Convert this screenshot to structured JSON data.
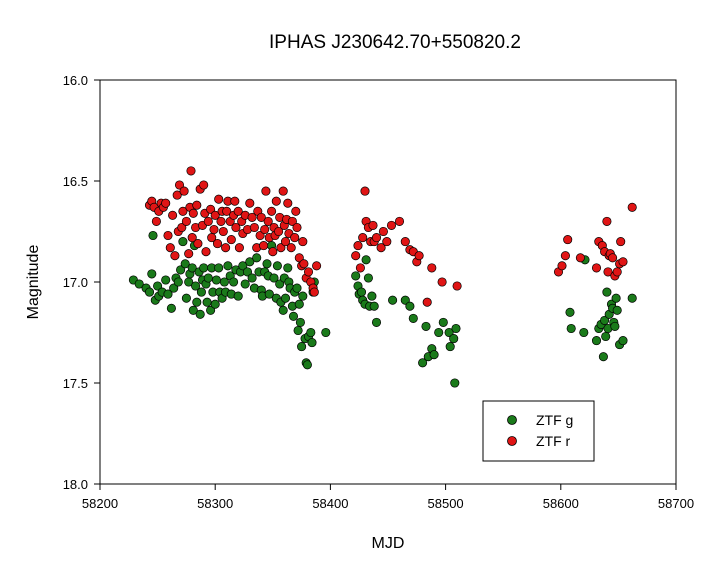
{
  "chart_data": {
    "type": "scatter",
    "title": "IPHAS J230642.70+550820.2",
    "xlabel": "MJD",
    "ylabel": "Magnitude",
    "xlim": [
      58200,
      58700
    ],
    "ylim": [
      16.0,
      18.0
    ],
    "y_inverted": true,
    "grid": false,
    "legend_position": "bottom-right",
    "x_ticks": [
      "58200",
      "58300",
      "58400",
      "58500",
      "58600",
      "58700"
    ],
    "y_ticks": [
      "16.0",
      "16.5",
      "17.0",
      "17.5",
      "18.0"
    ],
    "series": [
      {
        "name": "ZTF g",
        "color": "#1a7a1a",
        "points": [
          [
            58229,
            16.99
          ],
          [
            58234,
            17.01
          ],
          [
            58240,
            17.03
          ],
          [
            58243,
            17.05
          ],
          [
            58245,
            16.96
          ],
          [
            58246,
            16.77
          ],
          [
            58248,
            17.09
          ],
          [
            58250,
            17.02
          ],
          [
            58251,
            17.07
          ],
          [
            58254,
            17.05
          ],
          [
            58257,
            16.99
          ],
          [
            58259,
            17.06
          ],
          [
            58262,
            17.13
          ],
          [
            58264,
            17.03
          ],
          [
            58266,
            16.98
          ],
          [
            58268,
            17.0
          ],
          [
            58270,
            16.94
          ],
          [
            58272,
            16.8
          ],
          [
            58274,
            16.91
          ],
          [
            58275,
            17.08
          ],
          [
            58277,
            17.0
          ],
          [
            58278,
            16.96
          ],
          [
            58280,
            16.93
          ],
          [
            58281,
            17.14
          ],
          [
            58282,
            16.82
          ],
          [
            58283,
            17.02
          ],
          [
            58284,
            17.1
          ],
          [
            58286,
            16.95
          ],
          [
            58287,
            17.16
          ],
          [
            58288,
            17.05
          ],
          [
            58289,
            16.99
          ],
          [
            58290,
            16.93
          ],
          [
            58292,
            17.01
          ],
          [
            58293,
            17.1
          ],
          [
            58294,
            16.98
          ],
          [
            58296,
            17.14
          ],
          [
            58297,
            16.93
          ],
          [
            58298,
            17.05
          ],
          [
            58300,
            17.11
          ],
          [
            58301,
            16.99
          ],
          [
            58303,
            16.93
          ],
          [
            58304,
            17.05
          ],
          [
            58306,
            17.08
          ],
          [
            58308,
            17.0
          ],
          [
            58309,
            17.05
          ],
          [
            58311,
            16.92
          ],
          [
            58313,
            16.97
          ],
          [
            58314,
            17.06
          ],
          [
            58316,
            17.0
          ],
          [
            58318,
            16.94
          ],
          [
            58320,
            17.07
          ],
          [
            58322,
            16.95
          ],
          [
            58324,
            16.92
          ],
          [
            58326,
            17.01
          ],
          [
            58328,
            16.95
          ],
          [
            58330,
            16.9
          ],
          [
            58332,
            16.98
          ],
          [
            58334,
            17.03
          ],
          [
            58336,
            16.88
          ],
          [
            58338,
            16.95
          ],
          [
            58340,
            17.04
          ],
          [
            58341,
            17.07
          ],
          [
            58343,
            16.95
          ],
          [
            58345,
            16.91
          ],
          [
            58346,
            16.97
          ],
          [
            58347,
            17.06
          ],
          [
            58349,
            16.82
          ],
          [
            58351,
            16.98
          ],
          [
            58353,
            17.08
          ],
          [
            58354,
            16.92
          ],
          [
            58356,
            17.01
          ],
          [
            58357,
            17.1
          ],
          [
            58359,
            17.14
          ],
          [
            58360,
            16.98
          ],
          [
            58361,
            17.08
          ],
          [
            58363,
            16.93
          ],
          [
            58364,
            17.0
          ],
          [
            58365,
            17.03
          ],
          [
            58367,
            17.12
          ],
          [
            58368,
            17.17
          ],
          [
            58369,
            17.05
          ],
          [
            58371,
            17.03
          ],
          [
            58372,
            17.24
          ],
          [
            58373,
            17.11
          ],
          [
            58374,
            17.2
          ],
          [
            58375,
            17.32
          ],
          [
            58376,
            17.07
          ],
          [
            58378,
            17.28
          ],
          [
            58379,
            17.4
          ],
          [
            58380,
            17.41
          ],
          [
            58381,
            17.27
          ],
          [
            58383,
            17.25
          ],
          [
            58384,
            17.3
          ],
          [
            58385,
            17.05
          ],
          [
            58386,
            17.0
          ],
          [
            58396,
            17.25
          ],
          [
            58422,
            16.97
          ],
          [
            58424,
            17.02
          ],
          [
            58425,
            17.06
          ],
          [
            58427,
            17.05
          ],
          [
            58428,
            17.09
          ],
          [
            58430,
            17.11
          ],
          [
            58431,
            16.89
          ],
          [
            58433,
            16.98
          ],
          [
            58434,
            17.12
          ],
          [
            58436,
            17.07
          ],
          [
            58438,
            17.12
          ],
          [
            58440,
            17.2
          ],
          [
            58454,
            17.09
          ],
          [
            58465,
            17.09
          ],
          [
            58469,
            17.12
          ],
          [
            58472,
            17.18
          ],
          [
            58480,
            17.4
          ],
          [
            58483,
            17.22
          ],
          [
            58485,
            17.37
          ],
          [
            58488,
            17.33
          ],
          [
            58490,
            17.36
          ],
          [
            58494,
            17.25
          ],
          [
            58498,
            17.2
          ],
          [
            58503,
            17.25
          ],
          [
            58504,
            17.32
          ],
          [
            58507,
            17.28
          ],
          [
            58508,
            17.5
          ],
          [
            58509,
            17.23
          ],
          [
            58608,
            17.15
          ],
          [
            58609,
            17.23
          ],
          [
            58620,
            17.25
          ],
          [
            58621,
            16.89
          ],
          [
            58631,
            17.29
          ],
          [
            58633,
            17.23
          ],
          [
            58635,
            17.21
          ],
          [
            58637,
            17.37
          ],
          [
            58638,
            17.19
          ],
          [
            58639,
            17.27
          ],
          [
            58640,
            17.05
          ],
          [
            58641,
            17.23
          ],
          [
            58642,
            17.16
          ],
          [
            58644,
            17.11
          ],
          [
            58645,
            17.13
          ],
          [
            58646,
            17.2
          ],
          [
            58647,
            17.22
          ],
          [
            58648,
            17.08
          ],
          [
            58649,
            17.14
          ],
          [
            58651,
            17.31
          ],
          [
            58654,
            17.29
          ],
          [
            58662,
            17.08
          ]
        ]
      },
      {
        "name": "ZTF r",
        "color": "#e01515",
        "points": [
          [
            58243,
            16.62
          ],
          [
            58245,
            16.6
          ],
          [
            58247,
            16.63
          ],
          [
            58249,
            16.7
          ],
          [
            58251,
            16.65
          ],
          [
            58253,
            16.61
          ],
          [
            58255,
            16.63
          ],
          [
            58257,
            16.61
          ],
          [
            58259,
            16.77
          ],
          [
            58261,
            16.83
          ],
          [
            58263,
            16.67
          ],
          [
            58265,
            16.87
          ],
          [
            58267,
            16.57
          ],
          [
            58268,
            16.75
          ],
          [
            58269,
            16.52
          ],
          [
            58271,
            16.73
          ],
          [
            58272,
            16.65
          ],
          [
            58273,
            16.55
          ],
          [
            58275,
            16.7
          ],
          [
            58277,
            16.86
          ],
          [
            58278,
            16.63
          ],
          [
            58279,
            16.45
          ],
          [
            58280,
            16.78
          ],
          [
            58281,
            16.66
          ],
          [
            58283,
            16.73
          ],
          [
            58284,
            16.62
          ],
          [
            58285,
            16.81
          ],
          [
            58287,
            16.54
          ],
          [
            58289,
            16.72
          ],
          [
            58290,
            16.52
          ],
          [
            58291,
            16.66
          ],
          [
            58292,
            16.85
          ],
          [
            58294,
            16.7
          ],
          [
            58296,
            16.64
          ],
          [
            58297,
            16.78
          ],
          [
            58299,
            16.74
          ],
          [
            58300,
            16.67
          ],
          [
            58302,
            16.81
          ],
          [
            58303,
            16.59
          ],
          [
            58305,
            16.7
          ],
          [
            58306,
            16.65
          ],
          [
            58307,
            16.75
          ],
          [
            58309,
            16.83
          ],
          [
            58310,
            16.65
          ],
          [
            58311,
            16.6
          ],
          [
            58313,
            16.7
          ],
          [
            58314,
            16.79
          ],
          [
            58316,
            16.67
          ],
          [
            58317,
            16.6
          ],
          [
            58318,
            16.73
          ],
          [
            58320,
            16.65
          ],
          [
            58321,
            16.83
          ],
          [
            58323,
            16.7
          ],
          [
            58324,
            16.76
          ],
          [
            58326,
            16.67
          ],
          [
            58328,
            16.74
          ],
          [
            58330,
            16.61
          ],
          [
            58332,
            16.68
          ],
          [
            58334,
            16.73
          ],
          [
            58336,
            16.83
          ],
          [
            58337,
            16.65
          ],
          [
            58339,
            16.77
          ],
          [
            58340,
            16.68
          ],
          [
            58342,
            16.82
          ],
          [
            58343,
            16.74
          ],
          [
            58344,
            16.55
          ],
          [
            58346,
            16.7
          ],
          [
            58347,
            16.78
          ],
          [
            58349,
            16.65
          ],
          [
            58350,
            16.85
          ],
          [
            58351,
            16.73
          ],
          [
            58352,
            16.77
          ],
          [
            58353,
            16.6
          ],
          [
            58355,
            16.75
          ],
          [
            58356,
            16.68
          ],
          [
            58357,
            16.83
          ],
          [
            58359,
            16.55
          ],
          [
            58360,
            16.72
          ],
          [
            58361,
            16.8
          ],
          [
            58362,
            16.69
          ],
          [
            58363,
            16.61
          ],
          [
            58364,
            16.76
          ],
          [
            58366,
            16.83
          ],
          [
            58367,
            16.7
          ],
          [
            58369,
            16.78
          ],
          [
            58370,
            16.65
          ],
          [
            58371,
            16.73
          ],
          [
            58373,
            16.88
          ],
          [
            58375,
            16.92
          ],
          [
            58376,
            16.8
          ],
          [
            58377,
            16.91
          ],
          [
            58379,
            16.98
          ],
          [
            58381,
            16.95
          ],
          [
            58383,
            17.0
          ],
          [
            58385,
            17.03
          ],
          [
            58386,
            17.05
          ],
          [
            58388,
            16.92
          ],
          [
            58422,
            16.87
          ],
          [
            58424,
            16.82
          ],
          [
            58426,
            16.93
          ],
          [
            58428,
            16.78
          ],
          [
            58430,
            16.55
          ],
          [
            58431,
            16.7
          ],
          [
            58433,
            16.73
          ],
          [
            58435,
            16.8
          ],
          [
            58437,
            16.72
          ],
          [
            58438,
            16.8
          ],
          [
            58440,
            16.78
          ],
          [
            58444,
            16.83
          ],
          [
            58446,
            16.75
          ],
          [
            58449,
            16.8
          ],
          [
            58453,
            16.72
          ],
          [
            58460,
            16.7
          ],
          [
            58465,
            16.8
          ],
          [
            58469,
            16.84
          ],
          [
            58472,
            16.85
          ],
          [
            58475,
            16.9
          ],
          [
            58477,
            16.87
          ],
          [
            58484,
            17.1
          ],
          [
            58488,
            16.93
          ],
          [
            58497,
            17.0
          ],
          [
            58510,
            17.02
          ],
          [
            58598,
            16.95
          ],
          [
            58601,
            16.92
          ],
          [
            58604,
            16.87
          ],
          [
            58606,
            16.79
          ],
          [
            58617,
            16.88
          ],
          [
            58631,
            16.93
          ],
          [
            58633,
            16.8
          ],
          [
            58636,
            16.82
          ],
          [
            58638,
            16.85
          ],
          [
            58640,
            16.7
          ],
          [
            58641,
            16.95
          ],
          [
            58642,
            16.87
          ],
          [
            58643,
            16.86
          ],
          [
            58645,
            16.88
          ],
          [
            58647,
            16.97
          ],
          [
            58649,
            16.95
          ],
          [
            58651,
            16.91
          ],
          [
            58652,
            16.8
          ],
          [
            58654,
            16.9
          ],
          [
            58662,
            16.63
          ]
        ]
      }
    ]
  }
}
